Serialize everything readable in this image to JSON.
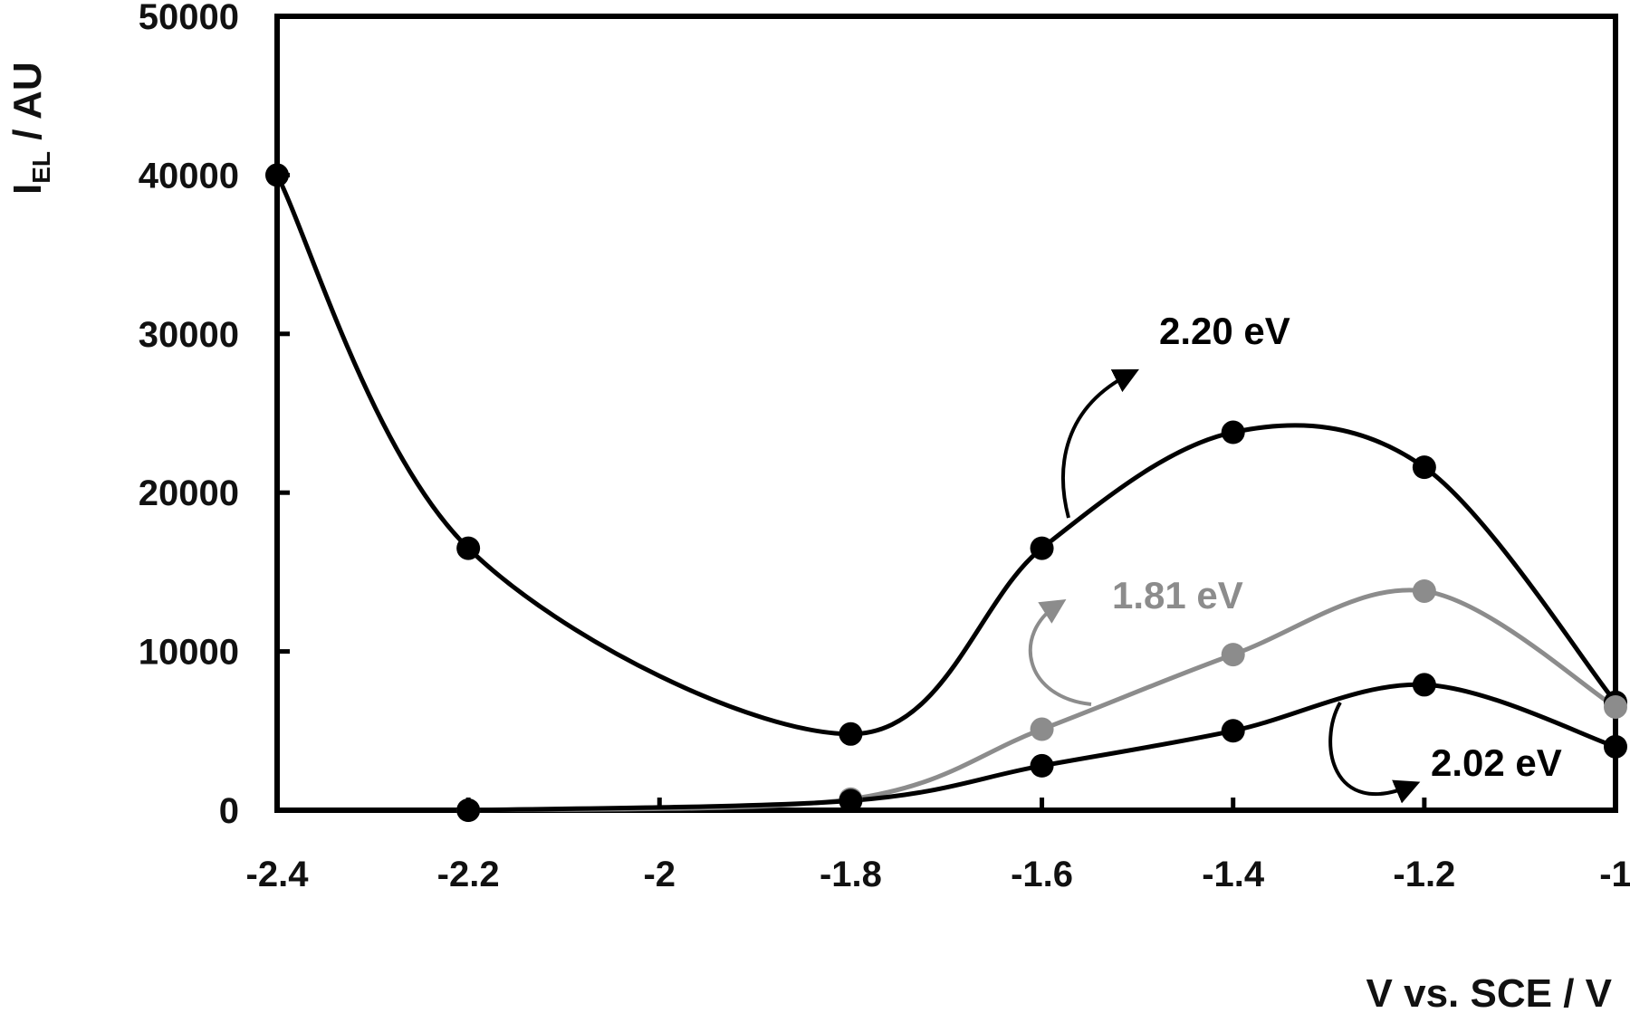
{
  "chart_data": {
    "type": "line",
    "title": "",
    "xlabel": "V vs. SCE / V",
    "ylabel": "I",
    "ylabel_subscript": "EL",
    "ylabel_unit": " / AU",
    "xlim": [
      -2.4,
      -1
    ],
    "ylim": [
      0,
      50000
    ],
    "xticks": [
      "-2.4",
      "-2.2",
      "-2",
      "-1.8",
      "-1.6",
      "-1.4",
      "-1.2",
      "-1"
    ],
    "yticks": [
      "0",
      "10000",
      "20000",
      "30000",
      "40000",
      "50000"
    ],
    "grid": false,
    "series": [
      {
        "name": "2.20 eV",
        "color": "#000000",
        "x": [
          -2.4,
          -2.2,
          -1.8,
          -1.6,
          -1.4,
          -1.2,
          -1
        ],
        "y": [
          40000,
          16500,
          4800,
          16500,
          23800,
          21600,
          6800
        ]
      },
      {
        "name": "1.81 eV",
        "color": "#8c8c8c",
        "x": [
          -2.2,
          -1.8,
          -1.6,
          -1.4,
          -1.2,
          -1
        ],
        "y": [
          0,
          700,
          5100,
          9800,
          13800,
          6500
        ]
      },
      {
        "name": "2.02 eV",
        "color": "#000000",
        "x": [
          -2.2,
          -1.8,
          -1.6,
          -1.4,
          -1.2,
          -1
        ],
        "y": [
          0,
          600,
          2800,
          5000,
          7900,
          4000
        ]
      }
    ]
  }
}
